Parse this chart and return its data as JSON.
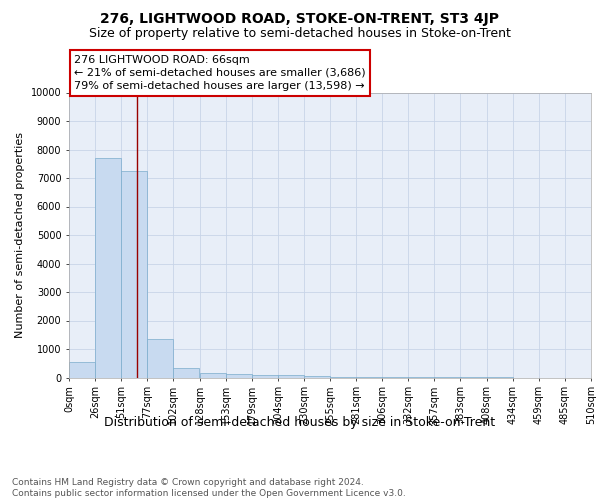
{
  "title": "276, LIGHTWOOD ROAD, STOKE-ON-TRENT, ST3 4JP",
  "subtitle": "Size of property relative to semi-detached houses in Stoke-on-Trent",
  "xlabel": "Distribution of semi-detached houses by size in Stoke-on-Trent",
  "ylabel": "Number of semi-detached properties",
  "footnote": "Contains HM Land Registry data © Crown copyright and database right 2024.\nContains public sector information licensed under the Open Government Licence v3.0.",
  "bin_edges": [
    0,
    25.5,
    51,
    76.5,
    102,
    127.5,
    153,
    178.5,
    204,
    229.5,
    255,
    280.5,
    306,
    331.5,
    357,
    382.5,
    408,
    433.5,
    459,
    484.5,
    510
  ],
  "bar_heights": [
    550,
    7700,
    7250,
    1350,
    330,
    175,
    130,
    100,
    75,
    50,
    20,
    10,
    5,
    3,
    2,
    1,
    1,
    0,
    0,
    0
  ],
  "bar_color": "#c8daf0",
  "bar_edgecolor": "#7aabcc",
  "property_size": 66,
  "property_line_color": "#990000",
  "annotation_text": "276 LIGHTWOOD ROAD: 66sqm\n← 21% of semi-detached houses are smaller (3,686)\n79% of semi-detached houses are larger (13,598) →",
  "annotation_box_facecolor": "#ffffff",
  "annotation_box_edgecolor": "#cc0000",
  "ylim": [
    0,
    10000
  ],
  "yticks": [
    0,
    1000,
    2000,
    3000,
    4000,
    5000,
    6000,
    7000,
    8000,
    9000,
    10000
  ],
  "xtick_labels": [
    "0sqm",
    "26sqm",
    "51sqm",
    "77sqm",
    "102sqm",
    "128sqm",
    "153sqm",
    "179sqm",
    "204sqm",
    "230sqm",
    "255sqm",
    "281sqm",
    "306sqm",
    "332sqm",
    "357sqm",
    "383sqm",
    "408sqm",
    "434sqm",
    "459sqm",
    "485sqm",
    "510sqm"
  ],
  "grid_color": "#c8d4e8",
  "background_color": "#e8eef8",
  "title_fontsize": 10,
  "subtitle_fontsize": 9,
  "xlabel_fontsize": 9,
  "ylabel_fontsize": 8,
  "tick_fontsize": 7,
  "footnote_fontsize": 6.5,
  "annotation_fontsize": 8
}
